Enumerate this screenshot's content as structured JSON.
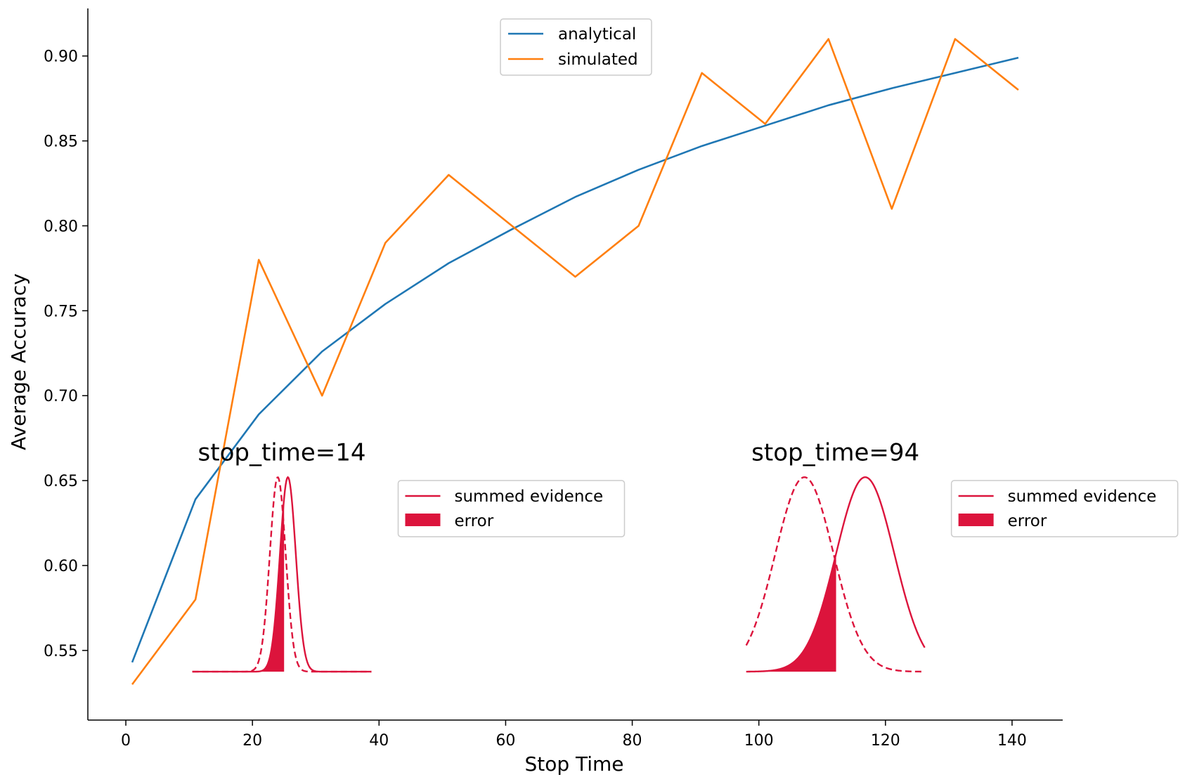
{
  "chart_data": {
    "type": "line",
    "title": "",
    "xlabel": "Stop Time",
    "ylabel": "Average Accuracy",
    "xlim": [
      -6,
      148
    ],
    "ylim": [
      0.509,
      0.928
    ],
    "xticks": [
      0,
      20,
      40,
      60,
      80,
      100,
      120,
      140
    ],
    "xtick_labels": [
      "0",
      "20",
      "40",
      "60",
      "80",
      "100",
      "120",
      "140"
    ],
    "yticks": [
      0.55,
      0.6,
      0.65,
      0.7,
      0.75,
      0.8,
      0.85,
      0.9
    ],
    "ytick_labels": [
      "0.55",
      "0.60",
      "0.65",
      "0.70",
      "0.75",
      "0.80",
      "0.85",
      "0.90"
    ],
    "grid": false,
    "legend_placement": "top-center",
    "x": [
      1,
      11,
      21,
      31,
      41,
      51,
      61,
      71,
      81,
      91,
      101,
      111,
      121,
      131,
      141
    ],
    "series": [
      {
        "name": "analytical",
        "color": "#1f77b4",
        "values": [
          0.543,
          0.639,
          0.689,
          0.726,
          0.754,
          0.778,
          0.798,
          0.817,
          0.833,
          0.847,
          0.859,
          0.871,
          0.881,
          0.89,
          0.899
        ]
      },
      {
        "name": "simulated",
        "color": "#ff7f0e",
        "values": [
          0.53,
          0.58,
          0.78,
          0.7,
          0.79,
          0.83,
          0.8,
          0.77,
          0.8,
          0.89,
          0.86,
          0.91,
          0.81,
          0.91,
          0.88
        ]
      }
    ],
    "insets": [
      {
        "title": "stop_time=14",
        "x_range": [
          10.5,
          38.8
        ],
        "y_range": [
          0.5375,
          0.652
        ],
        "mean_dashed": 24.0,
        "mean_solid": 25.6,
        "sd": 1.25,
        "error_cutoff": 25.0,
        "color": "#dc143c",
        "legend": {
          "line_label": "summed evidence",
          "fill_label": "error",
          "placement": "right"
        }
      },
      {
        "title": "stop_time=94",
        "x_range": [
          98.0,
          126.2
        ],
        "y_range": [
          0.5375,
          0.652
        ],
        "mean_dashed": 107.2,
        "mean_solid": 116.8,
        "sd": 4.6,
        "error_cutoff": 112.2,
        "color": "#dc143c",
        "legend": {
          "line_label": "summed evidence",
          "fill_label": "error",
          "placement": "right"
        }
      }
    ]
  }
}
